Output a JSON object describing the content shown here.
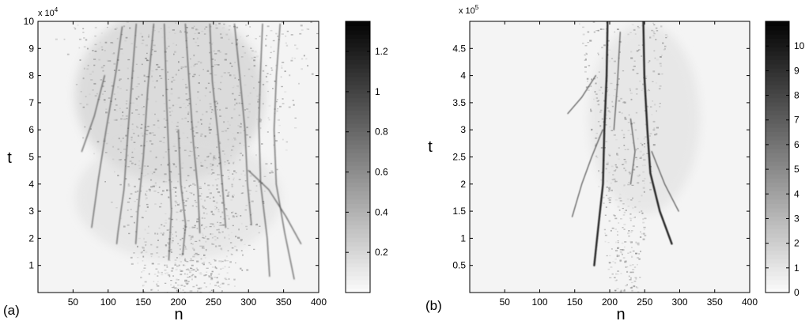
{
  "chart_data": [
    {
      "type": "heatmap",
      "panel_label": "(a)",
      "xlabel": "n",
      "ylabel": "t",
      "xlim": [
        0,
        400
      ],
      "ylim": [
        0,
        100000
      ],
      "x_ticks": [
        50,
        100,
        150,
        200,
        250,
        300,
        350,
        400
      ],
      "y_ticks": [
        1,
        2,
        3,
        4,
        5,
        6,
        7,
        8,
        9,
        10
      ],
      "y_multiplier": "x 10",
      "y_multiplier_exp": "4",
      "colorbar": {
        "range": [
          0,
          1.35
        ],
        "ticks": [
          "0.2",
          "0.4",
          "0.6",
          "0.8",
          "1",
          "1.2"
        ],
        "tick_values": [
          0.2,
          0.4,
          0.6,
          0.8,
          1.0,
          1.2
        ],
        "colormap": "gray-reversed"
      },
      "filaments": [
        [
          [
            120,
            98000
          ],
          [
            112,
            82000
          ],
          [
            98,
            60000
          ],
          [
            85,
            42000
          ],
          [
            75,
            24000
          ]
        ],
        [
          [
            140,
            99000
          ],
          [
            135,
            80000
          ],
          [
            128,
            58000
          ],
          [
            122,
            38000
          ],
          [
            115,
            22000
          ],
          [
            112,
            18000
          ]
        ],
        [
          [
            165,
            99000
          ],
          [
            158,
            75000
          ],
          [
            150,
            50000
          ],
          [
            144,
            30000
          ],
          [
            140,
            18000
          ]
        ],
        [
          [
            180,
            99000
          ],
          [
            182,
            70000
          ],
          [
            186,
            48000
          ],
          [
            190,
            30000
          ],
          [
            185,
            12000
          ]
        ],
        [
          [
            210,
            99000
          ],
          [
            215,
            75000
          ],
          [
            220,
            55000
          ],
          [
            228,
            38000
          ],
          [
            232,
            22000
          ]
        ],
        [
          [
            245,
            99000
          ],
          [
            250,
            78000
          ],
          [
            258,
            58000
          ],
          [
            262,
            40000
          ],
          [
            268,
            24000
          ]
        ],
        [
          [
            280,
            99000
          ],
          [
            288,
            80000
          ],
          [
            296,
            60000
          ],
          [
            300,
            40000
          ],
          [
            305,
            25000
          ]
        ],
        [
          [
            320,
            99000
          ],
          [
            318,
            80000
          ],
          [
            315,
            62000
          ],
          [
            318,
            40000
          ],
          [
            325,
            20000
          ],
          [
            330,
            6000
          ]
        ],
        [
          [
            345,
            99000
          ],
          [
            340,
            80000
          ],
          [
            335,
            60000
          ],
          [
            340,
            40000
          ],
          [
            350,
            22000
          ],
          [
            365,
            5000
          ]
        ],
        [
          [
            95,
            80000
          ],
          [
            80,
            65000
          ],
          [
            62,
            52000
          ]
        ],
        [
          [
            300,
            45000
          ],
          [
            330,
            38000
          ],
          [
            355,
            28000
          ],
          [
            375,
            18000
          ]
        ],
        [
          [
            200,
            60000
          ],
          [
            205,
            40000
          ],
          [
            210,
            25000
          ],
          [
            208,
            14000
          ]
        ]
      ]
    },
    {
      "type": "heatmap",
      "panel_label": "(b)",
      "xlabel": "n",
      "ylabel": "t",
      "xlim": [
        0,
        400
      ],
      "ylim": [
        0,
        500000
      ],
      "x_ticks": [
        50,
        100,
        150,
        200,
        250,
        300,
        350,
        400
      ],
      "y_ticks": [
        0.5,
        1,
        1.5,
        2,
        2.5,
        3,
        3.5,
        4,
        4.5
      ],
      "y_multiplier": "x 10",
      "y_multiplier_exp": "5",
      "colorbar": {
        "range": [
          0,
          11
        ],
        "ticks": [
          "0",
          "1",
          "2",
          "3",
          "4",
          "5",
          "6",
          "7",
          "8",
          "9",
          "10"
        ],
        "tick_values": [
          0,
          1,
          2,
          3,
          4,
          5,
          6,
          7,
          8,
          9,
          10
        ],
        "colormap": "gray-reversed"
      },
      "filaments": [
        [
          [
            197,
            500000
          ],
          [
            196,
            400000
          ],
          [
            193,
            300000
          ],
          [
            189,
            200000
          ],
          [
            183,
            120000
          ],
          [
            178,
            50000
          ]
        ],
        [
          [
            248,
            500000
          ],
          [
            250,
            400000
          ],
          [
            254,
            300000
          ],
          [
            258,
            220000
          ],
          [
            270,
            150000
          ],
          [
            290,
            90000
          ]
        ],
        [
          [
            190,
            300000
          ],
          [
            175,
            250000
          ],
          [
            160,
            200000
          ],
          [
            148,
            140000
          ]
        ],
        [
          [
            230,
            320000
          ],
          [
            235,
            260000
          ],
          [
            230,
            200000
          ]
        ],
        [
          [
            180,
            400000
          ],
          [
            160,
            360000
          ],
          [
            140,
            330000
          ]
        ],
        [
          [
            260,
            260000
          ],
          [
            280,
            200000
          ],
          [
            300,
            150000
          ]
        ],
        [
          [
            215,
            480000
          ],
          [
            210,
            380000
          ],
          [
            205,
            300000
          ]
        ]
      ]
    }
  ]
}
